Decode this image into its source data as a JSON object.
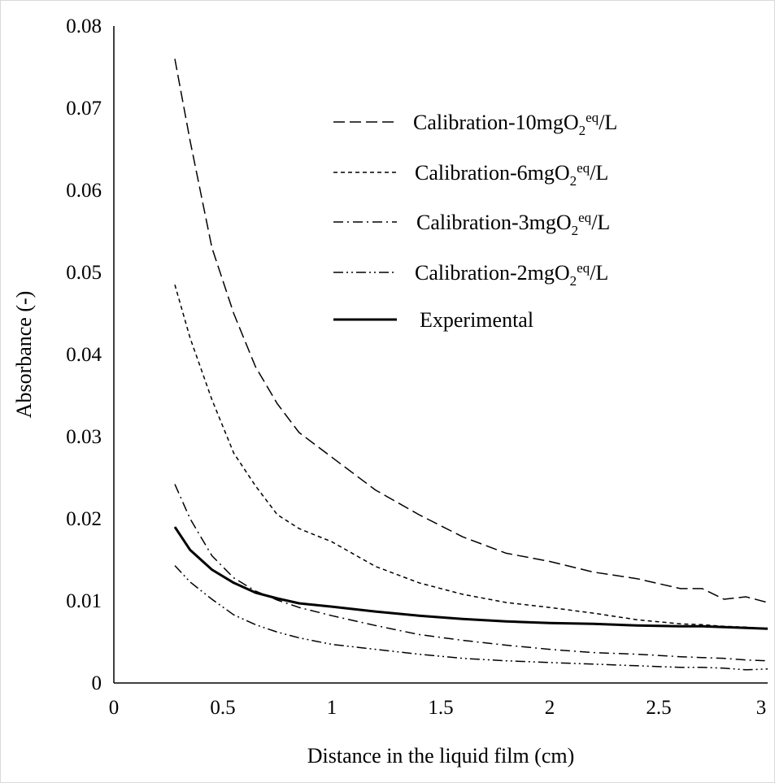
{
  "chart_data": {
    "type": "line",
    "title": "",
    "xlabel": "Distance in the liquid film (cm)",
    "ylabel": "Absorbance (-)",
    "xlim": [
      0,
      3
    ],
    "ylim": [
      0,
      0.08
    ],
    "x_ticks": [
      "0",
      "0.5",
      "1",
      "1.5",
      "2",
      "2.5",
      "3"
    ],
    "y_ticks": [
      "0",
      "0.01",
      "0.02",
      "0.03",
      "0.04",
      "0.05",
      "0.06",
      "0.07",
      "0.08"
    ],
    "grid": false,
    "legend_position": "top-right",
    "x": [
      0.28,
      0.35,
      0.45,
      0.55,
      0.65,
      0.75,
      0.85,
      1.0,
      1.2,
      1.4,
      1.6,
      1.8,
      2.0,
      2.2,
      2.4,
      2.6,
      2.7,
      2.8,
      2.9,
      3.0
    ],
    "series": [
      {
        "name": "Calibration-10mgO2eq/L",
        "legend_main": "Calibration-10mgO",
        "legend_sub": "2",
        "legend_sup": "eq",
        "legend_tail": "/L",
        "style": "dash",
        "values": [
          0.076,
          0.066,
          0.053,
          0.045,
          0.0385,
          0.034,
          0.0305,
          0.0275,
          0.0235,
          0.0205,
          0.0178,
          0.0158,
          0.0148,
          0.0135,
          0.0127,
          0.0115,
          0.0115,
          0.0102,
          0.0105,
          0.0098
        ]
      },
      {
        "name": "Calibration-6mgO2eq/L",
        "legend_main": "Calibration-6mgO",
        "legend_sub": "2",
        "legend_sup": "eq",
        "legend_tail": "/L",
        "style": "short-dash",
        "values": [
          0.0485,
          0.042,
          0.0345,
          0.028,
          0.024,
          0.0205,
          0.0188,
          0.0172,
          0.0142,
          0.0122,
          0.0108,
          0.0098,
          0.0092,
          0.0085,
          0.0077,
          0.0072,
          0.0071,
          0.0069,
          0.0068,
          0.0066
        ]
      },
      {
        "name": "Calibration-3mgO2eq/L",
        "legend_main": "Calibration-3mgO",
        "legend_sub": "2",
        "legend_sup": "eq",
        "legend_tail": "/L",
        "style": "dash-dot",
        "values": [
          0.0242,
          0.02,
          0.0155,
          0.0128,
          0.0112,
          0.0101,
          0.0092,
          0.0082,
          0.007,
          0.0059,
          0.0052,
          0.0046,
          0.0041,
          0.0037,
          0.0035,
          0.0032,
          0.0031,
          0.003,
          0.0028,
          0.0027
        ]
      },
      {
        "name": "Calibration-2mgO2eq/L",
        "legend_main": "Calibration-2mgO",
        "legend_sub": "2",
        "legend_sup": "eq",
        "legend_tail": "/L",
        "style": "dash-dot-dot",
        "values": [
          0.0143,
          0.0123,
          0.0102,
          0.0083,
          0.0071,
          0.0062,
          0.0055,
          0.0047,
          0.0041,
          0.0035,
          0.003,
          0.0027,
          0.0025,
          0.0023,
          0.0021,
          0.0019,
          0.0019,
          0.0018,
          0.0016,
          0.0017
        ]
      },
      {
        "name": "Experimental",
        "legend_main": "Experimental",
        "legend_sub": "",
        "legend_sup": "",
        "legend_tail": "",
        "style": "solid",
        "values": [
          0.019,
          0.0162,
          0.0138,
          0.0122,
          0.011,
          0.0103,
          0.0097,
          0.0093,
          0.0087,
          0.0082,
          0.0078,
          0.0075,
          0.0073,
          0.0072,
          0.007,
          0.0069,
          0.0069,
          0.0068,
          0.0067,
          0.0066
        ]
      }
    ]
  }
}
